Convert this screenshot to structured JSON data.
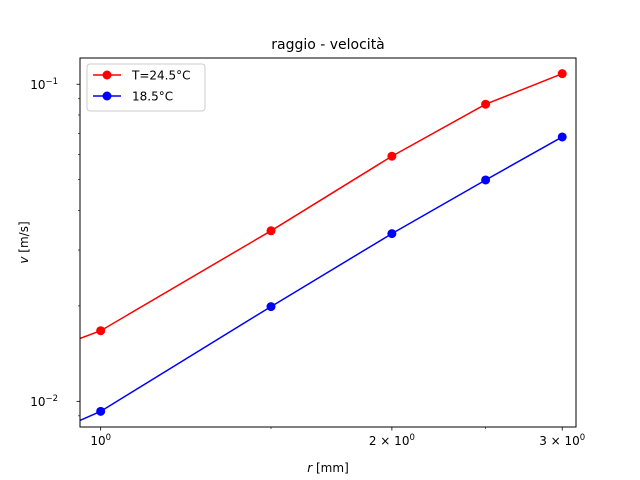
{
  "chart_data": {
    "type": "line",
    "title": "raggio - velocità",
    "xlabel": {
      "var": "r",
      "unit": " [mm]"
    },
    "ylabel": {
      "var": "v",
      "unit": " [m/s]"
    },
    "xscale": "log",
    "yscale": "log",
    "xlim": [
      0.952,
      3.1
    ],
    "ylim": [
      0.0083,
      0.121
    ],
    "x_ticks": [
      {
        "value": 1,
        "base": "10",
        "exp": "0",
        "prefix": ""
      },
      {
        "value": 2,
        "base": "10",
        "exp": "0",
        "prefix": "2 × "
      },
      {
        "value": 3,
        "base": "10",
        "exp": "0",
        "prefix": "3 × "
      }
    ],
    "y_ticks": [
      {
        "value": 0.01,
        "base": "10",
        "exp": "−2"
      },
      {
        "value": 0.1,
        "base": "10",
        "exp": "−1"
      }
    ],
    "legend_position": "top-left",
    "grid": false,
    "series": [
      {
        "name": "T=24.5°C",
        "color": "#ff0000",
        "x": [
          1.0,
          1.5,
          2.0,
          2.5,
          3.0
        ],
        "y": [
          0.0167,
          0.0345,
          0.0593,
          0.0865,
          0.108
        ],
        "line_extends_to_left_edge": true,
        "line_left_value": 0.0157
      },
      {
        "name": "18.5°C",
        "color": "#0000ff",
        "x": [
          1.0,
          1.5,
          2.0,
          2.5,
          3.0
        ],
        "y": [
          0.0093,
          0.0199,
          0.0338,
          0.0499,
          0.0682
        ],
        "line_extends_to_left_edge": true,
        "line_left_value": 0.00865
      }
    ]
  }
}
